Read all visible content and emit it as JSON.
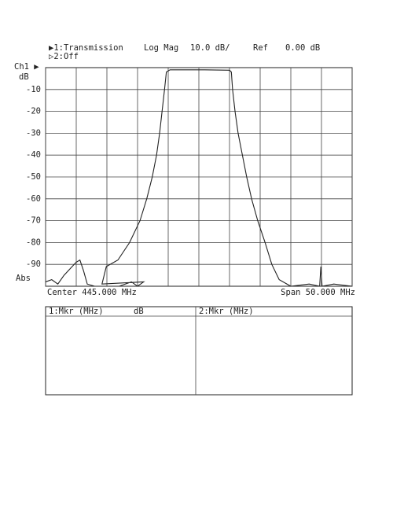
{
  "chart_data": {
    "type": "line",
    "header": {
      "trace1": "▶1:Transmission",
      "format": "Log Mag",
      "scale": "10.0 dB/",
      "ref_label": "Ref",
      "ref_value": "0.00 dB",
      "trace2": "▷2:Off"
    },
    "channel_label": "Ch1 ▶",
    "y_unit": "dB",
    "bottom_label": "Abs",
    "center_label": "Center 445.000 MHz",
    "span_label": "Span 50.000 MHz",
    "xlim": [
      420,
      470
    ],
    "ylim": [
      -100,
      0
    ],
    "xticks": [
      420,
      425,
      430,
      435,
      440,
      445,
      450,
      455,
      460,
      465,
      470
    ],
    "yticks": [
      -90,
      -80,
      -70,
      -60,
      -50,
      -40,
      -30,
      -20,
      -10
    ],
    "grid": true,
    "color": "#222",
    "series": [
      {
        "name": "Transmission",
        "color": "#222",
        "x": [
          420,
          421,
          422,
          423,
          424,
          425,
          425.6,
          426.2,
          426.8,
          428,
          432,
          434,
          435,
          436,
          429.2,
          429.9,
          431.8,
          433.7,
          435.4,
          436.5,
          437.4,
          438.1,
          438.6,
          439,
          439.4,
          439.7,
          440.3,
          443,
          446,
          450,
          450.3,
          450.5,
          450.9,
          451.4,
          452.1,
          452.8,
          453.6,
          454.6,
          455.8,
          456.9,
          458.1,
          460,
          463,
          464.7,
          464.9,
          465.1,
          467,
          470
        ],
        "values": [
          -98,
          -97,
          -99,
          -95,
          -92,
          -89,
          -88,
          -93,
          -99,
          -100,
          -100,
          -98,
          -100,
          -98,
          -99,
          -91,
          -88,
          -80,
          -70,
          -60,
          -50,
          -40,
          -30,
          -20,
          -10,
          -2,
          -1,
          -1,
          -1,
          -1.2,
          -2,
          -10,
          -20,
          -30,
          -40,
          -50,
          -60,
          -70,
          -80,
          -90,
          -97,
          -100,
          -99,
          -100,
          -91,
          -100,
          -99,
          -100
        ]
      }
    ],
    "marker_table": {
      "col1": "1:Mkr (MHz)",
      "col1_unit": "dB",
      "col2": "2:Mkr (MHz)"
    }
  }
}
